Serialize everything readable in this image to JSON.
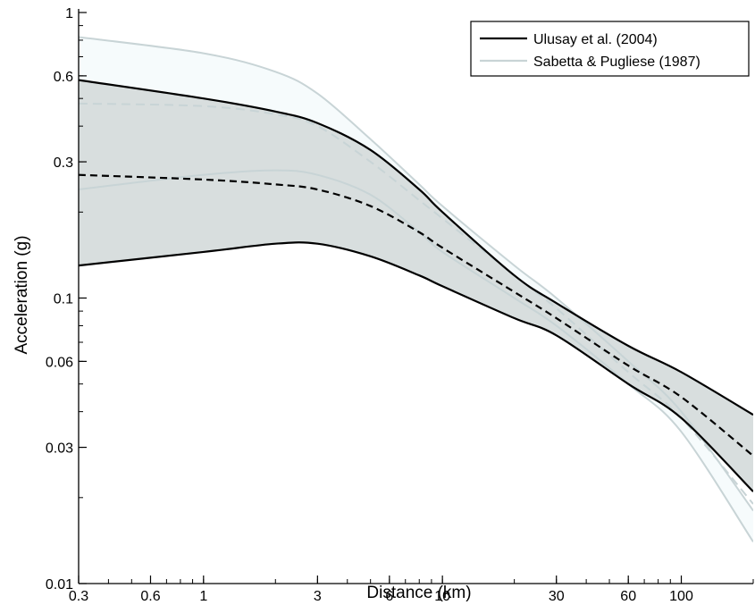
{
  "chart_data": {
    "type": "line",
    "xlabel": "Distance (km)",
    "ylabel": "Acceleration (g)",
    "xscale": "log",
    "yscale": "log",
    "xlim": [
      0.3,
      200
    ],
    "ylim": [
      0.01,
      1
    ],
    "xticks": [
      {
        "value": 0.3,
        "label": "0.3"
      },
      {
        "value": 0.6,
        "label": "0.6"
      },
      {
        "value": 1,
        "label": "1"
      },
      {
        "value": 3,
        "label": "3"
      },
      {
        "value": 6,
        "label": "6"
      },
      {
        "value": 10,
        "label": "10"
      },
      {
        "value": 30,
        "label": "30"
      },
      {
        "value": 60,
        "label": "60"
      },
      {
        "value": 100,
        "label": "100"
      }
    ],
    "yticks": [
      {
        "value": 0.01,
        "label": "0.01"
      },
      {
        "value": 0.03,
        "label": "0.03"
      },
      {
        "value": 0.06,
        "label": "0.06"
      },
      {
        "value": 0.1,
        "label": "0.1"
      },
      {
        "value": 0.3,
        "label": "0.3"
      },
      {
        "value": 0.6,
        "label": "0.6"
      },
      {
        "value": 1,
        "label": "1"
      }
    ],
    "grid": false,
    "legend": {
      "position": "top-right",
      "entries": [
        {
          "label": "Ulusay et al. (2004)",
          "color": "#000000"
        },
        {
          "label": "Sabetta & Pugliese (1987)",
          "color": "#c8d4d6"
        }
      ]
    },
    "series": [
      {
        "name": "Ulusay et al. (2004)",
        "color": "#000000",
        "bands": [
          {
            "role": "upper",
            "style": "solid",
            "x": [
              0.3,
              1,
              2,
              3,
              5,
              8,
              10,
              20,
              30,
              60,
              100,
              200
            ],
            "y": [
              0.58,
              0.5,
              0.45,
              0.41,
              0.33,
              0.24,
              0.2,
              0.12,
              0.096,
              0.068,
              0.055,
              0.039
            ]
          },
          {
            "role": "median",
            "style": "dashed",
            "x": [
              0.3,
              1,
              2,
              3,
              5,
              8,
              10,
              20,
              30,
              60,
              100,
              200
            ],
            "y": [
              0.27,
              0.26,
              0.25,
              0.24,
              0.21,
              0.17,
              0.15,
              0.105,
              0.085,
              0.058,
              0.045,
              0.028
            ]
          },
          {
            "role": "lower",
            "style": "solid",
            "x": [
              0.3,
              1,
              2,
              3,
              5,
              8,
              10,
              20,
              30,
              60,
              100,
              200
            ],
            "y": [
              0.13,
              0.145,
              0.155,
              0.155,
              0.14,
              0.12,
              0.11,
              0.085,
              0.074,
              0.05,
              0.038,
              0.021
            ]
          }
        ]
      },
      {
        "name": "Sabetta & Pugliese (1987)",
        "color": "#c8d4d6",
        "bands": [
          {
            "role": "upper",
            "style": "solid",
            "x": [
              0.3,
              1,
              2,
              3,
              5,
              8,
              10,
              20,
              30,
              60,
              100,
              200
            ],
            "y": [
              0.82,
              0.72,
              0.62,
              0.52,
              0.36,
              0.25,
              0.21,
              0.13,
              0.1,
              0.06,
              0.04,
              0.018
            ]
          },
          {
            "role": "median",
            "style": "dashed",
            "x": [
              0.3,
              1,
              2,
              3,
              5,
              8,
              10,
              20,
              30,
              60,
              100,
              200
            ],
            "y": [
              0.48,
              0.47,
              0.44,
              0.4,
              0.3,
              0.22,
              0.19,
              0.12,
              0.092,
              0.055,
              0.038,
              0.019
            ]
          },
          {
            "role": "lower",
            "style": "solid",
            "x": [
              0.3,
              1,
              2,
              3,
              5,
              8,
              10,
              20,
              30,
              60,
              100,
              200
            ],
            "y": [
              0.24,
              0.27,
              0.28,
              0.27,
              0.23,
              0.17,
              0.145,
              0.1,
              0.08,
              0.05,
              0.034,
              0.014
            ]
          }
        ]
      }
    ]
  }
}
